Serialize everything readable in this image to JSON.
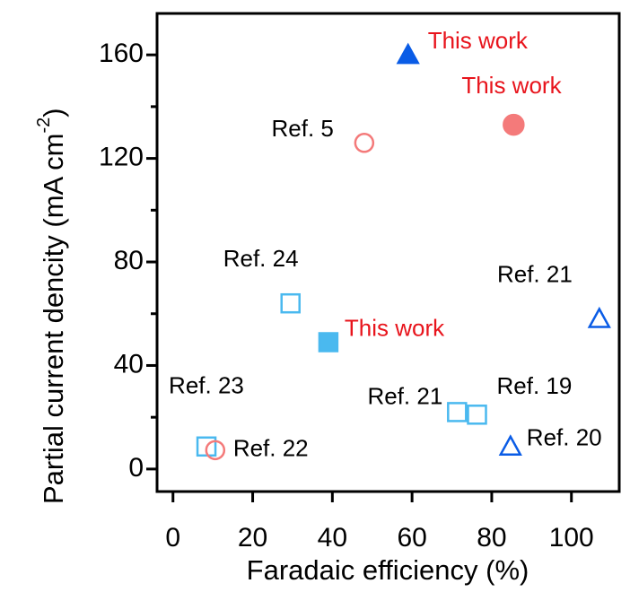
{
  "chart_data": {
    "type": "scatter",
    "xlabel": "Faradaic efficiency (%)",
    "ylabel": "Partial current dencity (mA cm",
    "ylabel_sup": "-2",
    "ylabel_end": ")",
    "xlim": [
      -4,
      112
    ],
    "ylim": [
      -8.7,
      176
    ],
    "xticks": [
      0,
      20,
      40,
      60,
      80,
      100
    ],
    "yticks": [
      0,
      40,
      80,
      120,
      160
    ],
    "yticks_minor": [
      20,
      60,
      100,
      140
    ],
    "points": [
      {
        "x": 59,
        "y": 160,
        "label": "This work",
        "label_color": "#e8141c",
        "marker": "triangle",
        "color": "#0a5ce6",
        "filled": true
      },
      {
        "x": 85.5,
        "y": 133,
        "label": "This work",
        "label_color": "#e8141c",
        "marker": "circle",
        "color": "#f47a7a",
        "filled": true
      },
      {
        "x": 48,
        "y": 126,
        "label": "Ref. 5",
        "label_color": "#000000",
        "marker": "circle",
        "color": "#f47a7a",
        "filled": false
      },
      {
        "x": 29.5,
        "y": 64,
        "label": "Ref. 24",
        "label_color": "#000000",
        "marker": "square",
        "color": "#4ab9ef",
        "filled": false
      },
      {
        "x": 39,
        "y": 49,
        "label": "This work",
        "label_color": "#e8141c",
        "marker": "square",
        "color": "#4ab9ef",
        "filled": true
      },
      {
        "x": 107,
        "y": 58,
        "label": "Ref. 21",
        "label_color": "#000000",
        "marker": "triangle",
        "color": "#0a5ce6",
        "filled": false
      },
      {
        "x": 71.3,
        "y": 22,
        "label": "Ref. 21",
        "label_color": "#000000",
        "marker": "square",
        "color": "#4ab9ef",
        "filled": false
      },
      {
        "x": 76.3,
        "y": 21,
        "label": "Ref. 19",
        "label_color": "#000000",
        "marker": "square",
        "color": "#4ab9ef",
        "filled": false
      },
      {
        "x": 84.7,
        "y": 8.7,
        "label": "Ref. 20",
        "label_color": "#000000",
        "marker": "triangle",
        "color": "#0a5ce6",
        "filled": false
      },
      {
        "x": 8.4,
        "y": 8.7,
        "label": "Ref. 23",
        "label_color": "#000000",
        "marker": "square",
        "color": "#4ab9ef",
        "filled": false
      },
      {
        "x": 10.6,
        "y": 7.3,
        "label": "Ref. 22",
        "label_color": "#000000",
        "marker": "circle",
        "color": "#f47a7a",
        "filled": false
      }
    ]
  }
}
